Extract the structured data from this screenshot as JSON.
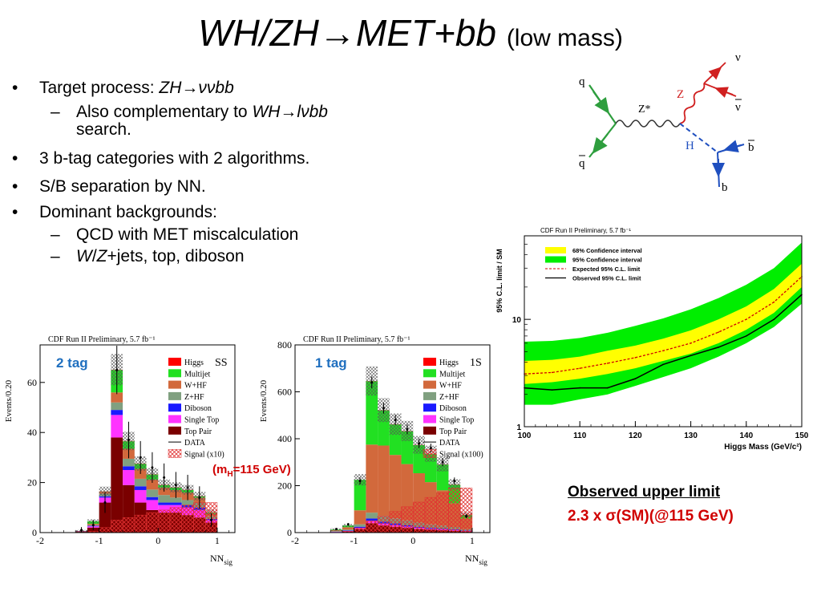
{
  "slide": {
    "title_main": "WH/ZH→MET+bb",
    "title_sub": "(low mass)",
    "bullets": [
      {
        "text": "Target process: ",
        "ital": "ZH→ννbb"
      },
      {
        "text": "3 b-tag categories with 2 algorithms."
      },
      {
        "text": "S/B separation by NN."
      },
      {
        "text": "Dominant backgrounds:"
      }
    ],
    "sub_bullets": {
      "complementary_pre": "Also complementary to ",
      "complementary_ital": "WH→lνbb",
      "complementary_post": "search.",
      "qcd": "QCD with MET miscalculation",
      "wz_ital_w": "W",
      "wz_slash": "/",
      "wz_ital_z": "Z",
      "wz_post": "+jets, top, diboson"
    },
    "mh_label": "(mH=115 GeV)",
    "limit_title": "Observed upper limit",
    "limit_value": "2.3 x σ(SM)(@115 GeV)"
  },
  "feynman": {
    "labels": {
      "q": "q",
      "qbar": "q",
      "zstar": "Z*",
      "z": "Z",
      "h": "H",
      "nu": "ν",
      "nubar": "ν",
      "b": "b",
      "bbar": "b"
    },
    "colors": {
      "quark": "#2e9e3e",
      "z": "#d02020",
      "h": "#1f4fbf",
      "b": "#1f4fbf"
    }
  },
  "chart_data": [
    {
      "type": "bar",
      "stacked": true,
      "title": "CDF Run II Preliminary, 5.7 fb⁻¹",
      "tag": "2 tag",
      "category": "SS",
      "xlabel": "NNsig",
      "ylabel": "Events/0.20",
      "xlim": [
        -2,
        1.3
      ],
      "ylim": [
        0,
        75
      ],
      "xticks": [
        "-2",
        "-1",
        "0",
        "1"
      ],
      "yticks": [
        "0",
        "20",
        "40",
        "60"
      ],
      "bin_edges": [
        -1.4,
        -1.2,
        -1.0,
        -0.8,
        -0.6,
        -0.4,
        -0.2,
        0.0,
        0.2,
        0.4,
        0.6,
        0.8,
        1.0
      ],
      "legend": [
        "Higgs",
        "Multijet",
        "W+HF",
        "Z+HF",
        "Diboson",
        "Single Top",
        "Top Pair",
        "DATA",
        "Signal (x10)"
      ],
      "series": [
        {
          "name": "Top Pair",
          "color": "#7a0000",
          "values": [
            0.5,
            2,
            12,
            38,
            19,
            12,
            9,
            8,
            8,
            7,
            6,
            4
          ]
        },
        {
          "name": "Single Top",
          "color": "#ff33ff",
          "values": [
            0.1,
            0.5,
            2,
            9,
            6,
            5,
            4,
            3,
            3,
            3,
            3,
            1
          ]
        },
        {
          "name": "Diboson",
          "color": "#1a1aff",
          "values": [
            0,
            0.2,
            0.5,
            2,
            1.5,
            1.5,
            1.2,
            1,
            1,
            1,
            1,
            0.5
          ]
        },
        {
          "name": "Z+HF",
          "color": "#80a080",
          "values": [
            0,
            0.3,
            1,
            3,
            3,
            3,
            3,
            3,
            2,
            2,
            2,
            1
          ]
        },
        {
          "name": "W+HF",
          "color": "#d2693c",
          "values": [
            0,
            0.5,
            1,
            4,
            4,
            4,
            4,
            3,
            3,
            3,
            2,
            1
          ]
        },
        {
          "name": "Multijet",
          "color": "#22e022",
          "values": [
            0,
            1,
            0,
            9,
            3,
            2,
            2,
            1,
            1,
            1,
            0.5,
            0.5
          ]
        },
        {
          "name": "Higgs",
          "color": "#ff0000",
          "values": [
            0,
            0,
            0,
            0.1,
            0.1,
            0.1,
            0.1,
            0.1,
            0.1,
            0.1,
            0.1,
            0.1
          ]
        }
      ],
      "data_points": [
        1,
        3,
        12,
        65,
        37,
        30,
        26,
        22,
        19,
        18,
        14,
        5
      ],
      "signal_x10": [
        0,
        0.5,
        2,
        5,
        6,
        7,
        8,
        9,
        10,
        11,
        12,
        12
      ]
    },
    {
      "type": "bar",
      "stacked": true,
      "title": "CDF Run II Preliminary, 5.7 fb⁻¹",
      "tag": "1 tag",
      "category": "1S",
      "xlabel": "NNsig",
      "ylabel": "Events/0.20",
      "xlim": [
        -2,
        1.3
      ],
      "ylim": [
        0,
        800
      ],
      "xticks": [
        "-2",
        "-1",
        "0",
        "1"
      ],
      "yticks": [
        "0",
        "200",
        "400",
        "600",
        "800"
      ],
      "bin_edges": [
        -1.4,
        -1.2,
        -1.0,
        -0.8,
        -0.6,
        -0.4,
        -0.2,
        0.0,
        0.2,
        0.4,
        0.6,
        0.8,
        1.0
      ],
      "legend": [
        "Higgs",
        "Multijet",
        "W+HF",
        "Z+HF",
        "Diboson",
        "Single Top",
        "Top Pair",
        "DATA",
        "Signal (x100)"
      ],
      "series": [
        {
          "name": "Top Pair",
          "color": "#7a0000",
          "values": [
            2,
            5,
            15,
            40,
            30,
            25,
            20,
            15,
            12,
            10,
            8,
            5
          ]
        },
        {
          "name": "Single Top",
          "color": "#ff33ff",
          "values": [
            1,
            2,
            5,
            10,
            8,
            7,
            6,
            5,
            4,
            4,
            3,
            2
          ]
        },
        {
          "name": "Diboson",
          "color": "#1a1aff",
          "values": [
            1,
            2,
            5,
            10,
            8,
            7,
            6,
            5,
            4,
            3,
            3,
            2
          ]
        },
        {
          "name": "Z+HF",
          "color": "#80a080",
          "values": [
            2,
            4,
            10,
            25,
            25,
            22,
            20,
            18,
            15,
            13,
            10,
            6
          ]
        },
        {
          "name": "W+HF",
          "color": "#d2693c",
          "values": [
            4,
            10,
            60,
            290,
            300,
            270,
            240,
            210,
            180,
            150,
            100,
            45
          ]
        },
        {
          "name": "Multijet",
          "color": "#22e022",
          "values": [
            3,
            7,
            130,
            270,
            150,
            130,
            140,
            120,
            120,
            110,
            80,
            15
          ]
        },
        {
          "name": "Higgs",
          "color": "#ff0000",
          "values": [
            0,
            0,
            0,
            1,
            1,
            1,
            1,
            1,
            1,
            1,
            1,
            1
          ]
        }
      ],
      "data_points": [
        15,
        35,
        220,
        640,
        530,
        480,
        440,
        380,
        360,
        300,
        220,
        70
      ],
      "signal_x100": [
        0,
        5,
        20,
        50,
        70,
        90,
        110,
        130,
        150,
        170,
        190,
        190
      ]
    },
    {
      "type": "line",
      "title": "CDF Run II Preliminary, 5.7 fb⁻¹",
      "xlabel": "Higgs Mass (GeV/c²)",
      "ylabel": "95% C.L. limit / SM",
      "log_y": true,
      "xlim": [
        100,
        150
      ],
      "ylim": [
        1,
        60
      ],
      "xticks": [
        "100",
        "110",
        "120",
        "130",
        "140",
        "150"
      ],
      "yticks": [
        "1",
        "10"
      ],
      "legend": [
        "68% Confidence interval",
        "95% Confidence interval",
        "Expected 95% C.L. limit",
        "Observed 95% C.L. limit"
      ],
      "x": [
        100,
        105,
        110,
        115,
        120,
        125,
        130,
        135,
        140,
        145,
        150
      ],
      "expected": [
        3.1,
        3.2,
        3.5,
        3.9,
        4.4,
        5.1,
        6.0,
        7.6,
        10.0,
        14.5,
        25.0
      ],
      "observed": [
        2.3,
        2.2,
        2.3,
        2.3,
        2.8,
        3.8,
        4.6,
        5.5,
        7.0,
        10.0,
        17.0
      ],
      "band68": {
        "low": [
          2.5,
          2.6,
          2.8,
          3.1,
          3.5,
          4.1,
          4.8,
          6.0,
          8.0,
          11.5,
          20.0
        ],
        "high": [
          4.1,
          4.2,
          4.5,
          5.1,
          5.7,
          6.6,
          7.9,
          10.0,
          13.2,
          19.2,
          33.0
        ]
      },
      "band95": {
        "low": [
          1.6,
          1.6,
          1.8,
          2.0,
          2.4,
          2.9,
          3.5,
          4.5,
          6.0,
          8.5,
          14.0
        ],
        "high": [
          6.2,
          6.3,
          6.7,
          7.5,
          8.7,
          10.2,
          12.4,
          15.8,
          21.0,
          30.0,
          52.0
        ]
      },
      "colors": {
        "band68": "#ffff00",
        "band95": "#00ee00",
        "expected": "#d00000",
        "observed": "#000000"
      }
    }
  ]
}
